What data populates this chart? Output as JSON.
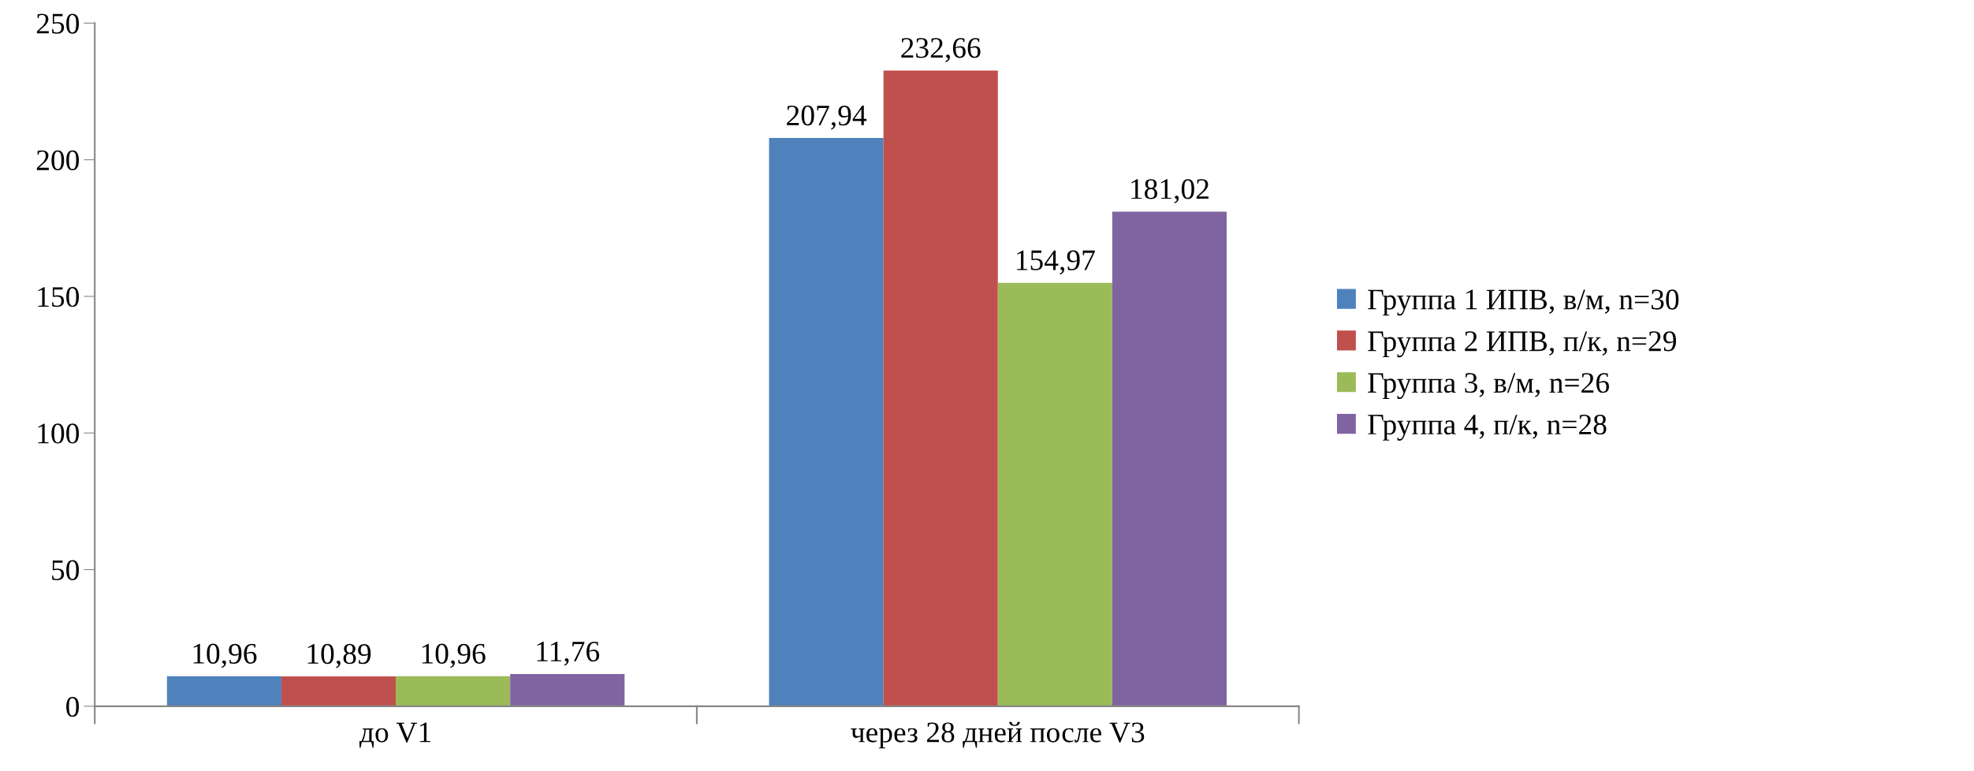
{
  "chart_data": {
    "type": "bar",
    "categories": [
      "до V1",
      "через 28 дней после V3"
    ],
    "series": [
      {
        "name": "Группа 1 ИПВ, в/м, n=30",
        "color": "#4f81bd",
        "values": [
          10.96,
          207.94
        ],
        "value_labels": [
          "10,96",
          "207,94"
        ]
      },
      {
        "name": "Группа 2 ИПВ, п/к, n=29",
        "color": "#c0504d",
        "values": [
          10.89,
          232.66
        ],
        "value_labels": [
          "10,89",
          "232,66"
        ]
      },
      {
        "name": "Группа 3, в/м, n=26",
        "color": "#9bbb59",
        "values": [
          10.96,
          154.97
        ],
        "value_labels": [
          "10,96",
          "154,97"
        ]
      },
      {
        "name": "Группа 4, п/к, n=28",
        "color": "#8064a2",
        "values": [
          11.76,
          181.02
        ],
        "value_labels": [
          "11,76",
          "181,02"
        ]
      }
    ],
    "ylim": [
      0,
      250
    ],
    "yticks": [
      0,
      50,
      100,
      150,
      200,
      250
    ],
    "grid": false,
    "legend": "right"
  }
}
